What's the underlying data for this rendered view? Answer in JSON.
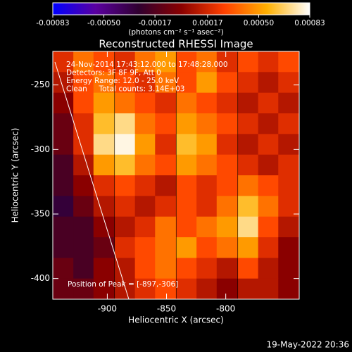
{
  "chart_data": {
    "type": "heatmap",
    "title": "Reconstructed RHESSI Image",
    "x_label": "Heliocentric X (arcsec)",
    "y_label": "Heliocentric Y (arcsec)",
    "colorbar_label": "(photons cm⁻² s⁻¹ asec⁻²)",
    "clim": [
      -0.00083,
      0.00083
    ],
    "colorbar_ticks": [
      -0.00083,
      {
        "value": -0.0005,
        "label": "-0.00050"
      },
      -0.00017,
      0.00017,
      {
        "value": 0.0005,
        "label": "0.00050"
      },
      0.00083
    ],
    "colormap": [
      "#0000ff",
      "#5a00a0",
      "#300030",
      "#8a0000",
      "#ff4000",
      "#ffb000",
      "#ffffff"
    ],
    "annotations": [
      "24-Nov-2014 17:43:12.000 to 17:48:28.000",
      "Detectors: 3F 8F 9F, Att 0",
      "Energy Range: 12.0 - 25.0 keV",
      "Clean     Total counts: 3.14E+03"
    ],
    "peak_label": "Position of Peak = [-897,-306]",
    "timestamp": "19-May-2022 20:36",
    "xlim": [
      -946,
      -738
    ],
    "ylim": [
      -416,
      -224
    ],
    "xticks": [
      -900,
      -850,
      -800
    ],
    "yticks": [
      -250,
      -300,
      -350,
      -400
    ],
    "x": [
      -937,
      -920,
      -903,
      -885,
      -868,
      -851,
      -833,
      -816,
      -799,
      -781,
      -764,
      -747
    ],
    "y": [
      -232,
      -248,
      -264,
      -280,
      -296,
      -312,
      -328,
      -344,
      -360,
      -376,
      -392,
      -408
    ],
    "z": [
      [
        0.0002,
        0.0004,
        0.0003,
        0.0002,
        0.0004,
        0.0005,
        0.0003,
        0.0004,
        0.0002,
        0.0003,
        0.0002,
        0.0003
      ],
      [
        0.0001,
        0.0003,
        0.0004,
        0.0003,
        0.0002,
        0.0004,
        0.0003,
        0.0005,
        0.0003,
        0.0002,
        0.0001,
        0.0002
      ],
      [
        0.0,
        0.0003,
        0.0005,
        0.0004,
        0.0003,
        0.0002,
        0.0004,
        0.0003,
        0.0002,
        0.0001,
        0.0002,
        0.0001
      ],
      [
        -0.0001,
        0.0002,
        0.0006,
        0.0007,
        0.0004,
        0.0003,
        0.0005,
        0.0004,
        0.0003,
        0.0002,
        0.0001,
        0.0002
      ],
      [
        -0.0001,
        0.0002,
        0.0007,
        0.0008,
        0.0005,
        0.0002,
        0.0006,
        0.0005,
        0.0002,
        0.0001,
        0.0002,
        0.0001
      ],
      [
        -0.0002,
        0.0001,
        0.0005,
        0.0006,
        0.0004,
        0.0003,
        0.0005,
        0.0004,
        0.0003,
        0.0002,
        0.0001,
        0.0002
      ],
      [
        -0.0002,
        0.0,
        0.0002,
        0.0003,
        0.0002,
        0.0001,
        0.0003,
        0.0002,
        0.0003,
        0.0004,
        0.0003,
        0.0002
      ],
      [
        -0.0003,
        -0.0001,
        0.0001,
        0.0002,
        0.0001,
        0.0002,
        0.0003,
        0.0002,
        0.0004,
        0.0006,
        0.0004,
        0.0002
      ],
      [
        -0.0002,
        -0.0002,
        0.0,
        0.0001,
        0.0002,
        0.0004,
        0.0003,
        0.0004,
        0.0005,
        0.0007,
        0.0003,
        0.0001
      ],
      [
        -0.0002,
        -0.0002,
        -0.0001,
        0.0002,
        0.0003,
        0.0004,
        0.0005,
        0.0003,
        0.0004,
        0.0005,
        0.0002,
        0.0
      ],
      [
        -0.0001,
        -0.0002,
        0.0,
        0.0001,
        0.0003,
        0.0004,
        0.0003,
        0.0002,
        0.0001,
        0.0003,
        0.0001,
        0.0
      ],
      [
        -0.0001,
        -0.0001,
        0.0,
        0.0001,
        0.0002,
        0.0003,
        0.0002,
        0.0001,
        0.0,
        0.0001,
        0.0001,
        0.0
      ]
    ]
  }
}
